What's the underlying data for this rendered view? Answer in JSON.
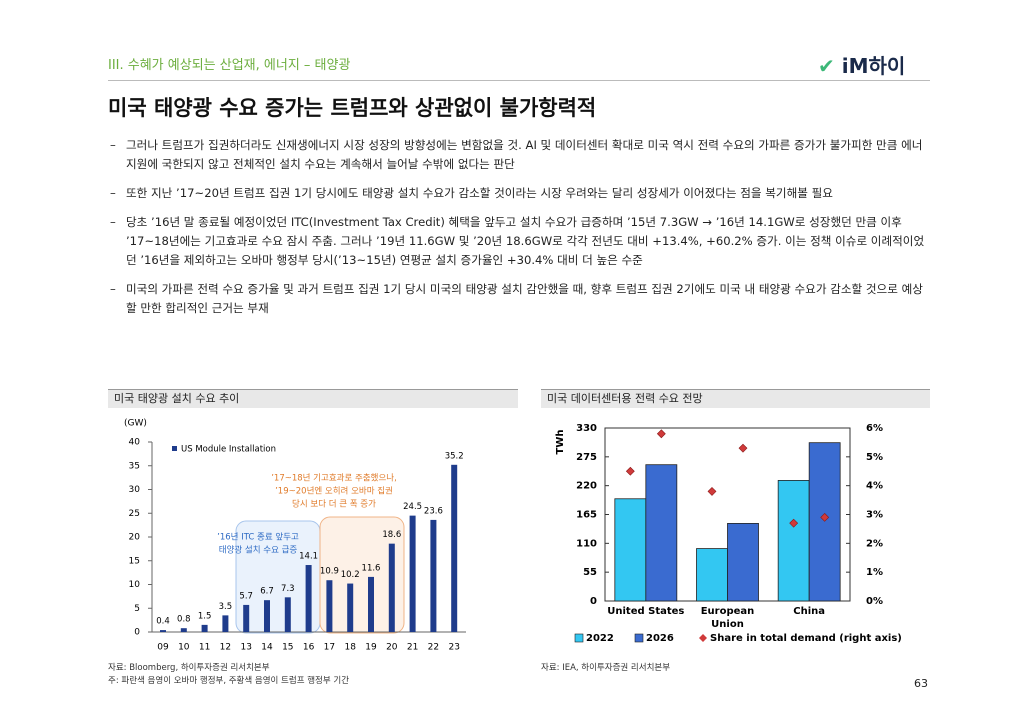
{
  "header": {
    "section": "III. 수혜가 예상되는 산업재, 에너지 – 태양광",
    "logo": "iM하이"
  },
  "title": "미국 태양광 수요 증가는 트럼프와 상관없이 불가항력적",
  "bullets": [
    "그러나 트럼프가 집권하더라도 신재생에너지 시장 성장의 방향성에는 변함없을 것. AI 및 데이터센터 확대로 미국 역시 전력 수요의 가파른 증가가 불가피한 만큼 에너지원에 국한되지 않고 전체적인 설치 수요는 계속해서 늘어날 수밖에 없다는 판단",
    "또한 지난 ’17~20년 트럼프 집권 1기 당시에도 태양광 설치 수요가 감소할 것이라는 시장 우려와는 달리 성장세가 이어졌다는 점을 복기해볼 필요",
    "당초 ’16년 말 종료될 예정이었던 ITC(Investment Tax Credit) 혜택을 앞두고 설치 수요가 급증하며 ’15년 7.3GW → ’16년 14.1GW로 성장했던 만큼 이후 ’17~18년에는 기고효과로 수요 잠시 주춤. 그러나 ’19년 11.6GW 및 ’20년 18.6GW로 각각 전년도 대비 +13.4%, +60.2% 증가. 이는 정책 이슈로 이례적이었던 ’16년을 제외하고는 오바마 행정부 당시(’13~15년) 연평균 설치 증가율인 +30.4% 대비 더 높은 수준",
    "미국의 가파른 전력 수요 증가율 및 과거 트럼프 집권 1기 당시 미국의 태양광 설치 감안했을 때, 향후 트럼프 집권 2기에도 미국 내 태양광 수요가 감소할 것으로 예상할 만한 합리적인 근거는 부재"
  ],
  "chart_data": [
    {
      "type": "bar",
      "title": "미국 태양광 설치 수요 추이",
      "y_unit": "(GW)",
      "categories": [
        "09",
        "10",
        "11",
        "12",
        "13",
        "14",
        "15",
        "16",
        "17",
        "18",
        "19",
        "20",
        "21",
        "22",
        "23"
      ],
      "series": [
        {
          "name": "US Module Installation",
          "color": "#1f3c8c",
          "values": [
            0.4,
            0.8,
            1.5,
            3.5,
            5.7,
            6.7,
            7.3,
            14.1,
            10.9,
            10.2,
            11.6,
            18.6,
            24.5,
            23.6,
            35.2
          ]
        }
      ],
      "ylim": [
        0,
        40
      ],
      "yticks": [
        0,
        5,
        10,
        15,
        20,
        25,
        30,
        35,
        40
      ],
      "legend": "upper left",
      "annotations": [
        [
          "’16년 ITC 종료 앞두고",
          "태양광 설치 수요 급증"
        ],
        [
          "’17~18년 기고효과로 주춤했으나,",
          "’19~20년엔 오히려 오바마 집권",
          "당시 보다 더 큰 폭 증가"
        ]
      ],
      "source": "자료: Bloomberg, 하이투자증권 리서치본부",
      "note": "주: 파란색 음영이 오바마 행정부, 주황색 음영이 트럼프 행정부 기간"
    },
    {
      "type": "bar",
      "title": "미국 데이터센터용 전력 수요 전망",
      "ylabel": "TWh",
      "categories": [
        "United States",
        "European Union",
        "China"
      ],
      "series": [
        {
          "name": "2022",
          "color": "#33c7f2",
          "values": [
            195,
            100,
            230
          ]
        },
        {
          "name": "2026",
          "color": "#3a6bd0",
          "values": [
            260,
            148,
            302
          ]
        },
        {
          "name": "Share in total demand (right axis)",
          "color": "#d03a3a",
          "axis": "y2",
          "values": [
            [
              4.5,
              5.8
            ],
            [
              3.8,
              5.3
            ],
            [
              2.7,
              2.9
            ]
          ]
        }
      ],
      "ylim": [
        0,
        330
      ],
      "yticks": [
        0,
        55,
        110,
        165,
        220,
        275,
        330
      ],
      "y2lim": [
        0,
        6
      ],
      "y2ticks": [
        {
          "value": 0,
          "label": "0%"
        },
        {
          "value": 1,
          "label": "1%"
        },
        {
          "value": 2,
          "label": "2%"
        },
        {
          "value": 3,
          "label": "3%"
        },
        {
          "value": 4,
          "label": "4%"
        },
        {
          "value": 5,
          "label": "5%"
        },
        {
          "value": 6,
          "label": "6%"
        }
      ],
      "legend": "bottom",
      "source": "자료: IEA, 하이투자증권 리서치본부"
    }
  ],
  "page_number": "63"
}
